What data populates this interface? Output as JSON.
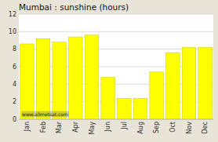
{
  "chart_data": {
    "type": "bar",
    "title": "Mumbai : sunshine (hours)",
    "categories": [
      "Jan",
      "Feb",
      "Mar",
      "Apr",
      "May",
      "Jun",
      "Jul",
      "Aug",
      "Sep",
      "Oct",
      "Nov",
      "Dec"
    ],
    "values": [
      8.6,
      9.2,
      8.8,
      9.4,
      9.6,
      4.8,
      2.4,
      2.4,
      5.4,
      7.6,
      8.2,
      8.2
    ],
    "color": "#FFFF00",
    "ylim": [
      0,
      12
    ],
    "yticks": [
      0,
      2,
      4,
      6,
      8,
      10,
      12
    ],
    "grid": true,
    "annotations": [
      "www.allmetsat.com"
    ]
  }
}
